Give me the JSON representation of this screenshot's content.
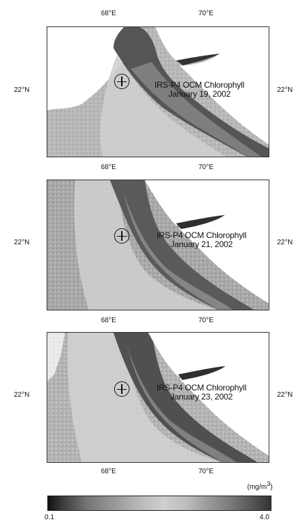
{
  "longitude_labels": [
    "68°E",
    "70°E"
  ],
  "latitude_label": "22°N",
  "panels": [
    {
      "title": "IRS-P4 OCM Chlorophyll",
      "date": "January 19, 2002"
    },
    {
      "title": "IRS-P4 OCM Chlorophyll",
      "date": "January 21, 2002"
    },
    {
      "title": "IRS-P4 OCM Chlorophyll",
      "date": "January 23, 2002"
    }
  ],
  "colorbar": {
    "units_prefix": "(mg/m",
    "units_exp": "3",
    "units_suffix": ")",
    "min_label": "0.1",
    "max_label": "4.0",
    "range": [
      0.1,
      4.0
    ]
  }
}
